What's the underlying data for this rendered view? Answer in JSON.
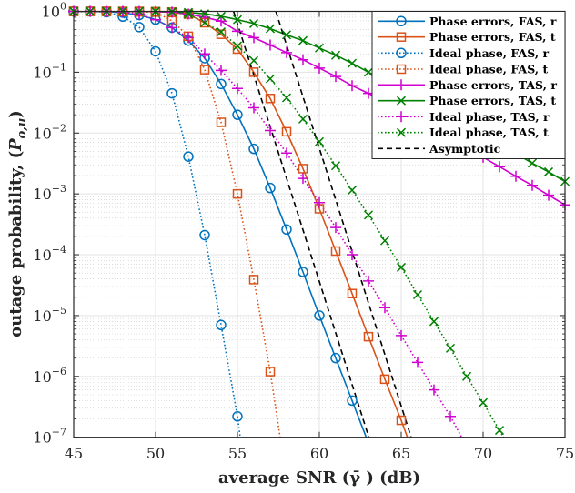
{
  "chart_data": {
    "type": "line",
    "title": "",
    "xlabel": "average SNR (γ̄ ) (dB)",
    "ylabel": {
      "text": "outage probability, (",
      "symbol": "P",
      "subscript": "o,u",
      "close": ")"
    },
    "xlim": [
      45,
      75
    ],
    "ylim": [
      1e-07,
      1
    ],
    "yscale": "log",
    "grid": true,
    "legend_position": "top-right",
    "xticks": [
      45,
      50,
      55,
      60,
      65,
      70,
      75
    ],
    "xtick_labels": [
      "45",
      "50",
      "55",
      "60",
      "65",
      "70",
      "75"
    ],
    "yticks": [
      1,
      0.1,
      0.01,
      0.001,
      0.0001,
      1e-05,
      1e-06,
      1e-07
    ],
    "ytick_labels": [
      {
        "base": "10",
        "exp": "0"
      },
      {
        "base": "10",
        "exp": "−1"
      },
      {
        "base": "10",
        "exp": "−2"
      },
      {
        "base": "10",
        "exp": "−3"
      },
      {
        "base": "10",
        "exp": "−4"
      },
      {
        "base": "10",
        "exp": "−5"
      },
      {
        "base": "10",
        "exp": "−6"
      },
      {
        "base": "10",
        "exp": "−7"
      }
    ],
    "series": [
      {
        "name": "Phase errors, FAS, r",
        "color": "#0072BD",
        "style": "solid",
        "marker": "circle",
        "x": [
          45,
          46,
          47,
          48,
          49,
          50,
          51,
          52,
          53,
          54,
          55,
          56,
          57,
          58,
          59,
          60,
          61,
          62,
          63
        ],
        "y": [
          1,
          1,
          0.99,
          0.95,
          0.87,
          0.73,
          0.54,
          0.33,
          0.17,
          0.064,
          0.02,
          0.0055,
          0.00125,
          0.00026,
          5.2e-05,
          1e-05,
          2e-06,
          4e-07,
          8e-08
        ]
      },
      {
        "name": "Phase errors, FAS, t",
        "color": "#D95319",
        "style": "solid",
        "marker": "square",
        "x": [
          45,
          46,
          47,
          48,
          49,
          50,
          51,
          52,
          53,
          54,
          55,
          56,
          57,
          58,
          59,
          60,
          61,
          62,
          63,
          64,
          65,
          66
        ],
        "y": [
          1,
          1,
          1,
          1,
          1,
          0.99,
          0.97,
          0.9,
          0.65,
          0.42,
          0.24,
          0.1,
          0.037,
          0.0105,
          0.0026,
          0.00057,
          0.000115,
          2.3e-05,
          4.5e-06,
          9e-07,
          1.9e-07,
          3.5e-08
        ]
      },
      {
        "name": "Ideal phase, FAS, r",
        "color": "#0072BD",
        "style": "dotted",
        "marker": "circle",
        "x": [
          45,
          46,
          47,
          48,
          49,
          50,
          51,
          52,
          53,
          54,
          55,
          56
        ],
        "y": [
          1,
          1,
          0.97,
          0.82,
          0.55,
          0.22,
          0.045,
          0.0041,
          0.00021,
          7e-06,
          2.2e-07,
          2e-09
        ]
      },
      {
        "name": "Ideal phase, FAS, t",
        "color": "#D95319",
        "style": "dotted",
        "marker": "square",
        "x": [
          45,
          46,
          47,
          48,
          49,
          50,
          51,
          52,
          53,
          54,
          55,
          56,
          57,
          58
        ],
        "y": [
          1,
          1,
          1,
          0.99,
          0.98,
          0.97,
          0.7,
          0.39,
          0.11,
          0.015,
          0.001,
          3.9e-05,
          1.2e-06,
          2e-08
        ]
      },
      {
        "name": "Phase errors, TAS, r",
        "color": "#D000D0",
        "style": "solid",
        "marker": "plus",
        "x": [
          45,
          46,
          47,
          48,
          49,
          50,
          51,
          52,
          53,
          54,
          55,
          56,
          57,
          58,
          59,
          60,
          61,
          62,
          63,
          64,
          65,
          66,
          67,
          68,
          69,
          70,
          71,
          72,
          73,
          74,
          75
        ],
        "y": [
          1,
          1,
          1,
          1,
          1,
          0.99,
          0.97,
          0.9,
          0.8,
          0.69,
          0.47,
          0.37,
          0.28,
          0.21,
          0.16,
          0.117,
          0.085,
          0.06,
          0.045,
          0.0316,
          0.0224,
          0.0158,
          0.0112,
          0.0079,
          0.0056,
          0.004,
          0.0028,
          0.00195,
          0.00138,
          0.00095,
          0.00066
        ]
      },
      {
        "name": "Phase errors, TAS, t",
        "color": "#008000",
        "style": "solid",
        "marker": "x",
        "x": [
          45,
          46,
          47,
          48,
          49,
          50,
          51,
          52,
          53,
          54,
          55,
          56,
          57,
          58,
          59,
          60,
          61,
          62,
          63,
          64,
          65,
          66,
          67,
          68,
          69,
          70,
          71,
          72,
          73,
          74,
          75
        ],
        "y": [
          1,
          1,
          1,
          1,
          1,
          1,
          0.99,
          0.96,
          0.91,
          0.83,
          0.73,
          0.63,
          0.52,
          0.41,
          0.33,
          0.25,
          0.19,
          0.14,
          0.1,
          0.072,
          0.051,
          0.036,
          0.026,
          0.018,
          0.013,
          0.0091,
          0.0065,
          0.0046,
          0.0032,
          0.0023,
          0.0016
        ]
      },
      {
        "name": "Ideal phase, TAS, r",
        "color": "#D000D0",
        "style": "dotted",
        "marker": "plus",
        "x": [
          45,
          46,
          47,
          48,
          49,
          50,
          51,
          52,
          53,
          54,
          55,
          56,
          57,
          58,
          59,
          60,
          61,
          62,
          63,
          64,
          65,
          66,
          67,
          68,
          69
        ],
        "y": [
          1,
          1,
          1,
          0.98,
          0.9,
          0.73,
          0.54,
          0.37,
          0.2,
          0.107,
          0.054,
          0.026,
          0.011,
          0.0047,
          0.0018,
          0.00072,
          0.00028,
          0.0001,
          3.7e-05,
          1.35e-05,
          4.7e-06,
          1.7e-06,
          6e-07,
          2.2e-07,
          7e-08
        ]
      },
      {
        "name": "Ideal phase, TAS, t",
        "color": "#008000",
        "style": "dotted",
        "marker": "x",
        "x": [
          45,
          46,
          47,
          48,
          49,
          50,
          51,
          52,
          53,
          54,
          55,
          56,
          57,
          58,
          59,
          60,
          61,
          62,
          63,
          64,
          65,
          66,
          67,
          68,
          69,
          70,
          71,
          72
        ],
        "y": [
          1,
          1,
          1,
          1,
          1,
          1,
          0.97,
          0.9,
          0.65,
          0.46,
          0.27,
          0.155,
          0.078,
          0.038,
          0.017,
          0.0072,
          0.0029,
          0.00115,
          0.00045,
          0.00017,
          6.2e-05,
          2.2e-05,
          8e-06,
          2.9e-06,
          1e-06,
          3.7e-07,
          1.3e-07,
          4.5e-08
        ]
      },
      {
        "name": "Asymptotic",
        "color": "#000000",
        "style": "dashed",
        "marker": "none",
        "lines": [
          {
            "x": [
              54.0,
              63.3
            ],
            "y": [
              4.4,
              5.8e-08
            ]
          },
          {
            "x": [
              56.6,
              65.9
            ],
            "y": [
              4.3,
              5.6e-08
            ]
          }
        ]
      }
    ]
  }
}
